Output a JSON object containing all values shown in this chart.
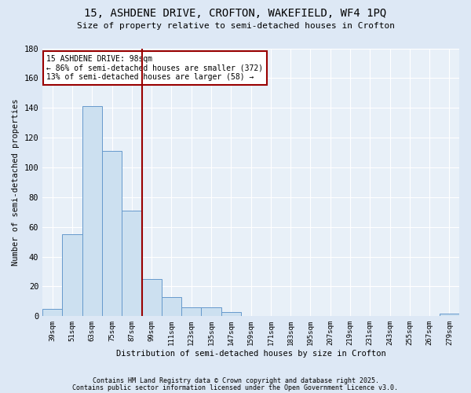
{
  "title": "15, ASHDENE DRIVE, CROFTON, WAKEFIELD, WF4 1PQ",
  "subtitle": "Size of property relative to semi-detached houses in Crofton",
  "xlabel": "Distribution of semi-detached houses by size in Crofton",
  "ylabel": "Number of semi-detached properties",
  "bar_labels": [
    "39sqm",
    "51sqm",
    "63sqm",
    "75sqm",
    "87sqm",
    "99sqm",
    "111sqm",
    "123sqm",
    "135sqm",
    "147sqm",
    "159sqm",
    "171sqm",
    "183sqm",
    "195sqm",
    "207sqm",
    "219sqm",
    "231sqm",
    "243sqm",
    "255sqm",
    "267sqm",
    "279sqm"
  ],
  "bar_values": [
    5,
    55,
    141,
    111,
    71,
    25,
    13,
    6,
    6,
    3,
    0,
    0,
    0,
    0,
    0,
    0,
    0,
    0,
    0,
    0,
    2
  ],
  "bar_color": "#cce0f0",
  "bar_edge_color": "#6699cc",
  "vline_color": "#990000",
  "annotation_title": "15 ASHDENE DRIVE: 98sqm",
  "annotation_line1": "← 86% of semi-detached houses are smaller (372)",
  "annotation_line2": "13% of semi-detached houses are larger (58) →",
  "annotation_box_color": "#ffffff",
  "annotation_box_edge": "#990000",
  "ylim": [
    0,
    180
  ],
  "yticks": [
    0,
    20,
    40,
    60,
    80,
    100,
    120,
    140,
    160,
    180
  ],
  "footnote1": "Contains HM Land Registry data © Crown copyright and database right 2025.",
  "footnote2": "Contains public sector information licensed under the Open Government Licence v3.0.",
  "bg_color": "#dde8f5",
  "plot_bg_color": "#e8f0f8"
}
